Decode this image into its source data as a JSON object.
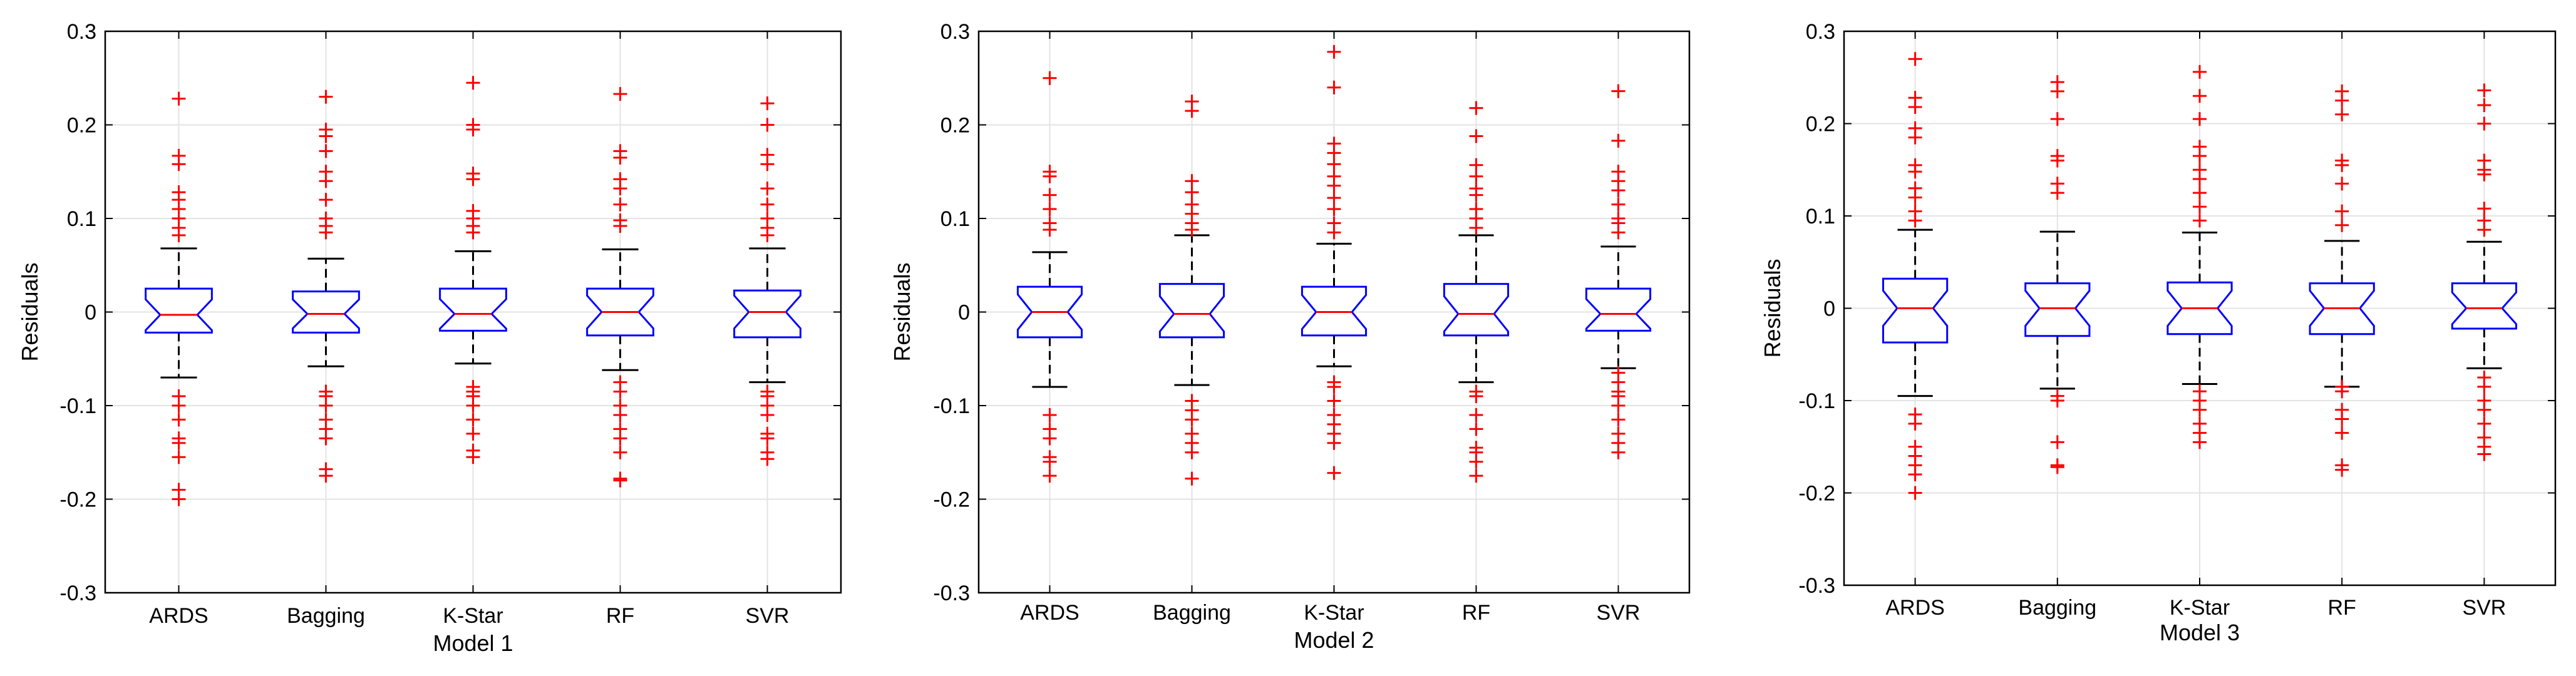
{
  "chart_data": [
    {
      "type": "box",
      "title": "",
      "xlabel": "Model 1",
      "ylabel": "Residuals",
      "ylim": [
        -0.3,
        0.3
      ],
      "yticks": [
        0.3,
        0.2,
        0.1,
        0,
        -0.1,
        -0.2,
        -0.3
      ],
      "ytick_labels": [
        "0.3",
        "0.2",
        "0.1",
        "0",
        "-0.1",
        "-0.2",
        "-0.3"
      ],
      "grid": true,
      "categories": [
        "ARDS",
        "Bagging",
        "K-Star",
        "RF",
        "SVR"
      ],
      "series": [
        {
          "name": "ARDS",
          "q1": -0.022,
          "median": -0.003,
          "q3": 0.025,
          "whisker_low": -0.07,
          "whisker_high": 0.068,
          "outliers_high": [
            0.228,
            0.167,
            0.158,
            0.128,
            0.12,
            0.11,
            0.1,
            0.09,
            0.082
          ],
          "outliers_low": [
            -0.09,
            -0.1,
            -0.115,
            -0.135,
            -0.14,
            -0.155,
            -0.19,
            -0.2
          ]
        },
        {
          "name": "Bagging",
          "q1": -0.022,
          "median": -0.002,
          "q3": 0.022,
          "whisker_low": -0.058,
          "whisker_high": 0.057,
          "outliers_high": [
            0.23,
            0.195,
            0.188,
            0.172,
            0.15,
            0.14,
            0.12,
            0.1,
            0.092,
            0.085
          ],
          "outliers_low": [
            -0.085,
            -0.09,
            -0.1,
            -0.115,
            -0.125,
            -0.135,
            -0.168,
            -0.175
          ]
        },
        {
          "name": "K-Star",
          "q1": -0.02,
          "median": -0.002,
          "q3": 0.025,
          "whisker_low": -0.055,
          "whisker_high": 0.065,
          "outliers_high": [
            0.245,
            0.2,
            0.195,
            0.148,
            0.142,
            0.108,
            0.1,
            0.092,
            0.085
          ],
          "outliers_low": [
            -0.08,
            -0.085,
            -0.09,
            -0.1,
            -0.115,
            -0.13,
            -0.148,
            -0.155
          ]
        },
        {
          "name": "RF",
          "q1": -0.025,
          "median": 0.0,
          "q3": 0.025,
          "whisker_low": -0.062,
          "whisker_high": 0.067,
          "outliers_high": [
            0.233,
            0.172,
            0.165,
            0.142,
            0.132,
            0.115,
            0.098,
            0.092
          ],
          "outliers_low": [
            -0.075,
            -0.085,
            -0.1,
            -0.11,
            -0.125,
            -0.135,
            -0.15,
            -0.178,
            -0.18
          ]
        },
        {
          "name": "SVR",
          "q1": -0.027,
          "median": 0.0,
          "q3": 0.023,
          "whisker_low": -0.075,
          "whisker_high": 0.068,
          "outliers_high": [
            0.223,
            0.2,
            0.168,
            0.158,
            0.132,
            0.115,
            0.1,
            0.09,
            0.082
          ],
          "outliers_low": [
            -0.085,
            -0.09,
            -0.1,
            -0.11,
            -0.13,
            -0.135,
            -0.15,
            -0.157
          ]
        }
      ]
    },
    {
      "type": "box",
      "title": "",
      "xlabel": "Model 2",
      "ylabel": "Residuals",
      "ylim": [
        -0.3,
        0.3
      ],
      "yticks": [
        0.3,
        0.2,
        0.1,
        0,
        -0.1,
        -0.2,
        -0.3
      ],
      "ytick_labels": [
        "0.3",
        "0.2",
        "0.1",
        "0",
        "-0.1",
        "-0.2",
        "-0.3"
      ],
      "grid": true,
      "categories": [
        "ARDS",
        "Bagging",
        "K-Star",
        "RF",
        "SVR"
      ],
      "series": [
        {
          "name": "ARDS",
          "q1": -0.027,
          "median": 0.0,
          "q3": 0.027,
          "whisker_low": -0.08,
          "whisker_high": 0.064,
          "outliers_high": [
            0.25,
            0.15,
            0.145,
            0.125,
            0.11,
            0.095,
            0.088
          ],
          "outliers_low": [
            -0.11,
            -0.125,
            -0.135,
            -0.155,
            -0.16,
            -0.175
          ]
        },
        {
          "name": "Bagging",
          "q1": -0.027,
          "median": -0.002,
          "q3": 0.03,
          "whisker_low": -0.078,
          "whisker_high": 0.082,
          "outliers_high": [
            0.225,
            0.215,
            0.14,
            0.128,
            0.115,
            0.105,
            0.095,
            0.088
          ],
          "outliers_low": [
            -0.095,
            -0.105,
            -0.115,
            -0.13,
            -0.14,
            -0.15,
            -0.178
          ]
        },
        {
          "name": "K-Star",
          "q1": -0.025,
          "median": 0.0,
          "q3": 0.027,
          "whisker_low": -0.058,
          "whisker_high": 0.073,
          "outliers_high": [
            0.278,
            0.24,
            0.18,
            0.17,
            0.158,
            0.145,
            0.135,
            0.122,
            0.11,
            0.095,
            0.085
          ],
          "outliers_low": [
            -0.075,
            -0.08,
            -0.095,
            -0.11,
            -0.12,
            -0.13,
            -0.14,
            -0.172
          ]
        },
        {
          "name": "RF",
          "q1": -0.025,
          "median": -0.002,
          "q3": 0.03,
          "whisker_low": -0.075,
          "whisker_high": 0.082,
          "outliers_high": [
            0.218,
            0.188,
            0.157,
            0.145,
            0.132,
            0.125,
            0.11,
            0.1,
            0.09
          ],
          "outliers_low": [
            -0.085,
            -0.09,
            -0.11,
            -0.125,
            -0.145,
            -0.15,
            -0.16,
            -0.175
          ]
        },
        {
          "name": "SVR",
          "q1": -0.02,
          "median": -0.002,
          "q3": 0.025,
          "whisker_low": -0.06,
          "whisker_high": 0.07,
          "outliers_high": [
            0.236,
            0.183,
            0.15,
            0.14,
            0.13,
            0.115,
            0.1,
            0.095,
            0.085
          ],
          "outliers_low": [
            -0.065,
            -0.075,
            -0.085,
            -0.09,
            -0.1,
            -0.115,
            -0.13,
            -0.14,
            -0.15
          ]
        }
      ]
    },
    {
      "type": "box",
      "title": "",
      "xlabel": "Model 3",
      "ylabel": "Residuals",
      "ylim": [
        -0.3,
        0.3
      ],
      "yticks": [
        0.3,
        0.2,
        0.1,
        0,
        -0.1,
        -0.2,
        -0.3
      ],
      "ytick_labels": [
        "0.3",
        "0.2",
        "0.1",
        "0",
        "-0.1",
        "-0.2",
        "-0.3"
      ],
      "grid": true,
      "categories": [
        "ARDS",
        "Bagging",
        "K-Star",
        "RF",
        "SVR"
      ],
      "series": [
        {
          "name": "ARDS",
          "q1": -0.037,
          "median": 0.0,
          "q3": 0.032,
          "whisker_low": -0.095,
          "whisker_high": 0.085,
          "outliers_high": [
            0.27,
            0.228,
            0.218,
            0.195,
            0.185,
            0.155,
            0.148,
            0.13,
            0.12,
            0.105,
            0.095
          ],
          "outliers_low": [
            -0.115,
            -0.125,
            -0.15,
            -0.16,
            -0.17,
            -0.18,
            -0.2
          ]
        },
        {
          "name": "Bagging",
          "q1": -0.03,
          "median": 0.0,
          "q3": 0.027,
          "whisker_low": -0.087,
          "whisker_high": 0.083,
          "outliers_high": [
            0.245,
            0.235,
            0.205,
            0.165,
            0.16,
            0.135,
            0.125
          ],
          "outliers_low": [
            -0.095,
            -0.1,
            -0.145,
            -0.17,
            -0.172
          ]
        },
        {
          "name": "K-Star",
          "q1": -0.028,
          "median": 0.0,
          "q3": 0.028,
          "whisker_low": -0.082,
          "whisker_high": 0.082,
          "outliers_high": [
            0.256,
            0.23,
            0.205,
            0.175,
            0.165,
            0.15,
            0.14,
            0.125,
            0.11,
            0.095
          ],
          "outliers_low": [
            -0.09,
            -0.1,
            -0.11,
            -0.125,
            -0.135,
            -0.145
          ]
        },
        {
          "name": "RF",
          "q1": -0.028,
          "median": 0.0,
          "q3": 0.027,
          "whisker_low": -0.085,
          "whisker_high": 0.073,
          "outliers_high": [
            0.235,
            0.225,
            0.21,
            0.16,
            0.155,
            0.135,
            0.105,
            0.09
          ],
          "outliers_low": [
            -0.085,
            -0.09,
            -0.11,
            -0.12,
            -0.135,
            -0.17,
            -0.175
          ]
        },
        {
          "name": "SVR",
          "q1": -0.022,
          "median": 0.0,
          "q3": 0.027,
          "whisker_low": -0.065,
          "whisker_high": 0.072,
          "outliers_high": [
            0.236,
            0.22,
            0.2,
            0.16,
            0.15,
            0.145,
            0.108,
            0.095,
            0.085
          ],
          "outliers_low": [
            -0.075,
            -0.085,
            -0.1,
            -0.11,
            -0.125,
            -0.14,
            -0.15,
            -0.158
          ]
        }
      ]
    }
  ],
  "style": {
    "box_color": "#0000ff",
    "median_color": "#ff0000",
    "whisker_color": "#000000",
    "outlier_color": "#ff0000",
    "grid_color": "#e3e3e3",
    "axes_color": "#000000"
  }
}
